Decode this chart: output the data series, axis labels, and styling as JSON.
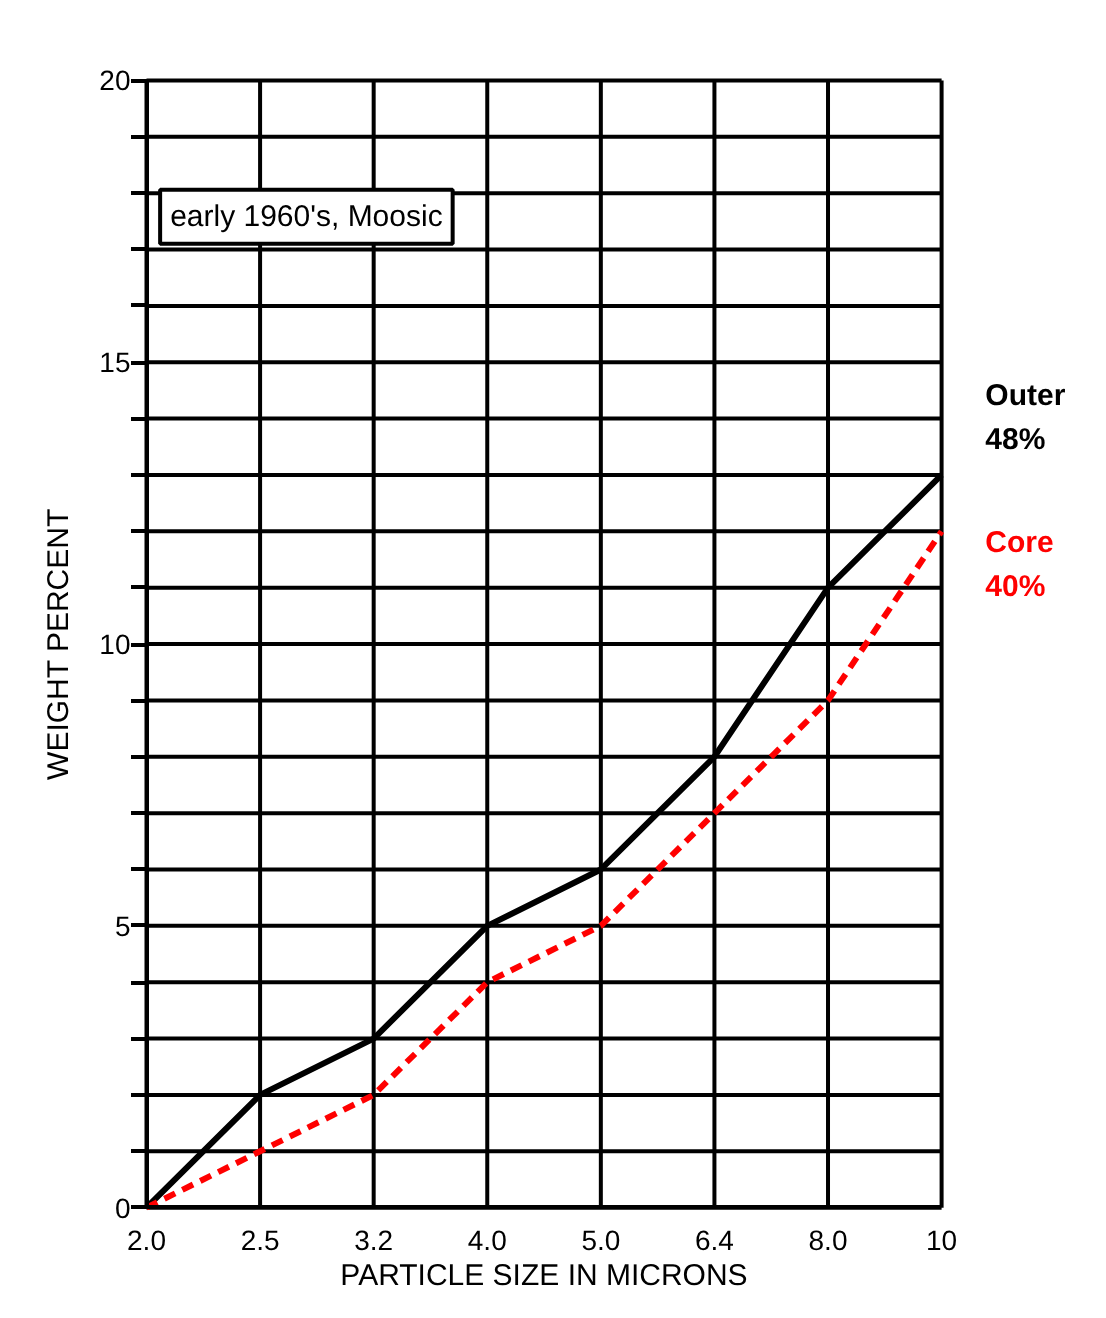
{
  "chart_data": {
    "type": "line",
    "title": "early 1960's, Moosic",
    "xlabel": "PARTICLE SIZE IN MICRONS",
    "ylabel": "WEIGHT PERCENT",
    "categories": [
      "2.0",
      "2.5",
      "3.2",
      "4.0",
      "5.0",
      "6.4",
      "8.0",
      "10"
    ],
    "series": [
      {
        "name": "Outer\n48%",
        "color": "#000000",
        "values": [
          0,
          2,
          3,
          5,
          6,
          8,
          11,
          13
        ],
        "line_style": "solid"
      },
      {
        "name": "Core\n40%",
        "color": "#ff0000",
        "values": [
          0,
          1,
          2,
          4,
          5,
          7,
          9,
          12
        ],
        "line_style": "dashed"
      }
    ],
    "ylim": [
      0,
      20
    ],
    "yticks": [
      0,
      {
        "value": 1,
        "label": null
      },
      {
        "value": 2,
        "label": null
      },
      {
        "value": 3,
        "label": null
      },
      {
        "value": 4,
        "label": null
      },
      5,
      {
        "value": 6,
        "label": null
      },
      {
        "value": 7,
        "label": null
      },
      {
        "value": 8,
        "label": null
      },
      {
        "value": 9,
        "label": null
      },
      10,
      {
        "value": 11,
        "label": null
      },
      {
        "value": 12,
        "label": null
      },
      {
        "value": 13,
        "label": null
      },
      {
        "value": 14,
        "label": null
      },
      15,
      {
        "value": 16,
        "label": null
      },
      {
        "value": 17,
        "label": null
      },
      {
        "value": 18,
        "label": null
      },
      {
        "value": 19,
        "label": null
      },
      20
    ],
    "grid": true
  }
}
